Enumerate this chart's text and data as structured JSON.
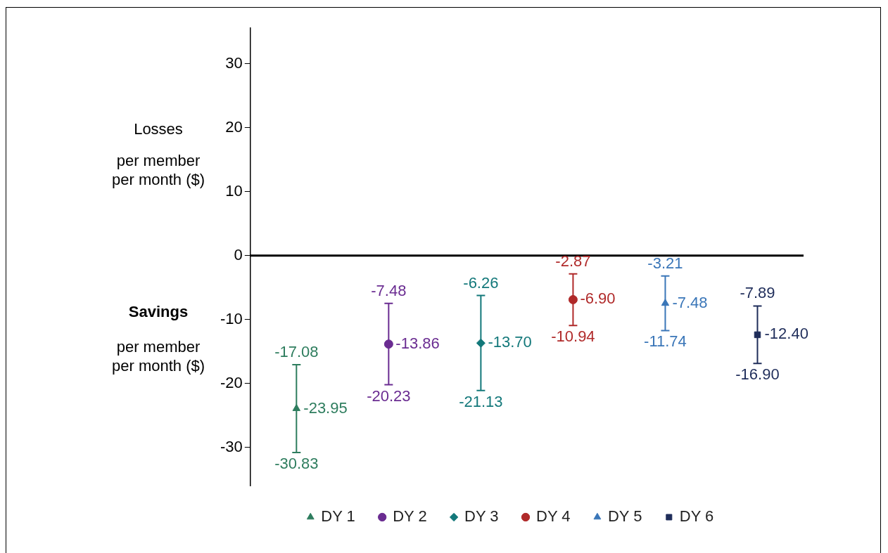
{
  "chart_data": {
    "type": "scatter",
    "categories": [
      null,
      null,
      null,
      null,
      null,
      null
    ],
    "series": [
      {
        "name": "DY 1",
        "color": "#2e7d5e",
        "marker": "triangle",
        "values": [
          -23.95,
          null,
          null,
          null,
          null,
          null
        ],
        "value_labels": [
          "-23.95",
          null,
          null,
          null,
          null,
          null
        ],
        "errors": [
          [
            -30.83,
            -17.08
          ],
          null,
          null,
          null,
          null,
          null
        ]
      },
      {
        "name": "DY 2",
        "color": "#6a2c91",
        "marker": "circle",
        "values": [
          null,
          -13.86,
          null,
          null,
          null,
          null
        ],
        "value_labels": [
          null,
          "-13.86",
          null,
          null,
          null,
          null
        ],
        "errors": [
          null,
          [
            -20.23,
            -7.48
          ],
          null,
          null,
          null,
          null
        ]
      },
      {
        "name": "DY 3",
        "color": "#13787a",
        "marker": "diamond",
        "values": [
          null,
          null,
          -13.7,
          null,
          null,
          null
        ],
        "value_labels": [
          null,
          null,
          "-13.70",
          null,
          null,
          null
        ],
        "errors": [
          null,
          null,
          [
            -21.13,
            -6.26
          ],
          null,
          null,
          null
        ]
      },
      {
        "name": "DY 4",
        "color": "#b02a2a",
        "marker": "circle",
        "values": [
          null,
          null,
          null,
          -6.9,
          null,
          null
        ],
        "value_labels": [
          null,
          null,
          null,
          "-6.90",
          null,
          null
        ],
        "errors": [
          null,
          null,
          null,
          [
            -10.94,
            -2.87
          ],
          null,
          null
        ]
      },
      {
        "name": "DY 5",
        "color": "#3a76b8",
        "marker": "triangle",
        "values": [
          null,
          null,
          null,
          null,
          -7.48,
          null
        ],
        "value_labels": [
          null,
          null,
          null,
          null,
          "-7.48",
          null
        ],
        "errors": [
          null,
          null,
          null,
          null,
          [
            -11.74,
            -3.21
          ],
          null
        ]
      },
      {
        "name": "DY 6",
        "color": "#1f2d5a",
        "marker": "square",
        "values": [
          null,
          null,
          null,
          null,
          null,
          -12.4
        ],
        "value_labels": [
          null,
          null,
          null,
          null,
          null,
          "-12.40"
        ],
        "errors": [
          null,
          null,
          null,
          null,
          null,
          [
            -16.9,
            -7.89
          ]
        ]
      }
    ],
    "ylim": [
      -36,
      35.6
    ],
    "yticks": [
      -30,
      -20,
      -10,
      0,
      10,
      20,
      30
    ],
    "grid": false,
    "legend": "bottom",
    "ref_lines": [
      {
        "axis": "y",
        "value": 0,
        "color": "#000000"
      }
    ],
    "annotations": [
      "Losses",
      "per member per month ($)",
      "Savings",
      "per member per month ($)",
      {
        "text": "-17.08",
        "y": -17.08
      },
      {
        "text": "-30.83",
        "y": -30.83
      },
      {
        "text": "-7.48",
        "y": -7.48
      },
      {
        "text": "-20.23",
        "y": -20.23
      },
      {
        "text": "-6.26",
        "y": -6.26
      },
      {
        "text": "-21.13",
        "y": -21.13
      },
      {
        "text": "-2.87",
        "y": -2.87
      },
      {
        "text": "-10.94",
        "y": -10.94
      },
      {
        "text": "-3.21",
        "y": -3.21
      },
      {
        "text": "-11.74",
        "y": -11.74
      },
      {
        "text": "-7.89",
        "y": -7.89
      },
      {
        "text": "-16.90",
        "y": -16.9
      }
    ]
  }
}
